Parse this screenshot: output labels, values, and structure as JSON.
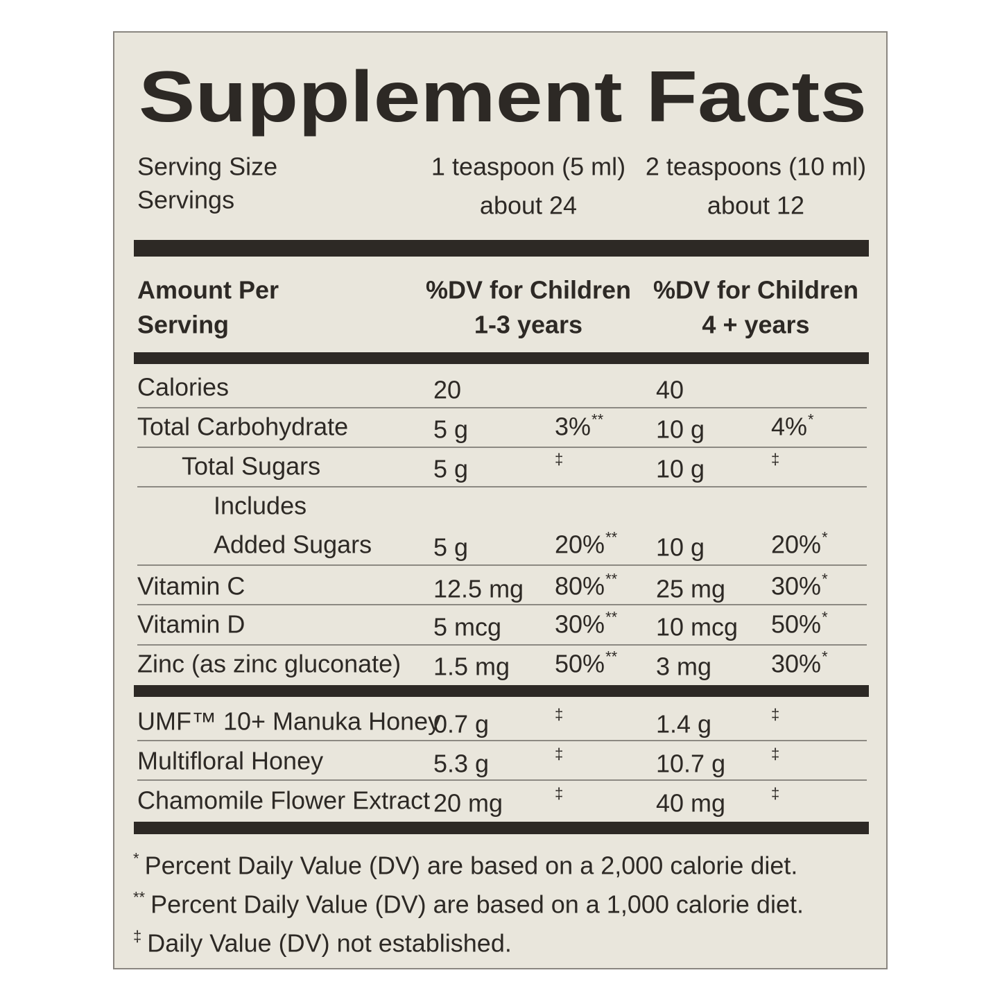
{
  "title": "Supplement Facts",
  "serving": {
    "size_label": "Serving Size",
    "servings_label": "Servings",
    "columns": [
      {
        "size": "1 teaspoon (5 ml)",
        "servings": "about 24"
      },
      {
        "size": "2 teaspoons (10 ml)",
        "servings": "about 12"
      }
    ]
  },
  "header": {
    "amount": [
      "Amount Per",
      "Serving"
    ],
    "columns": [
      [
        "%DV for Children",
        "1-3 years"
      ],
      [
        "%DV for Children",
        "4 + years"
      ]
    ]
  },
  "nutrients": [
    {
      "name": [
        "Calories"
      ],
      "cols": [
        {
          "amount": "20"
        },
        {
          "amount": "40"
        }
      ]
    },
    {
      "name": [
        "Total Carbohydrate"
      ],
      "cols": [
        {
          "amount": "5 g",
          "dv": "3%",
          "mark": "**"
        },
        {
          "amount": "10 g",
          "dv": "4%",
          "mark": "*"
        }
      ]
    },
    {
      "name": [
        "Total Sugars"
      ],
      "cols": [
        {
          "amount": "5 g",
          "mark": "‡"
        },
        {
          "amount": "10 g",
          "mark": "‡"
        }
      ]
    },
    {
      "name": [
        "Includes",
        "Added Sugars"
      ],
      "cols": [
        {
          "amount": "5 g",
          "dv": "20%",
          "mark": "**"
        },
        {
          "amount": "10 g",
          "dv": "20%",
          "mark": "*"
        }
      ]
    },
    {
      "name": [
        "Vitamin C"
      ],
      "cols": [
        {
          "amount": "12.5 mg",
          "dv": "80%",
          "mark": "**"
        },
        {
          "amount": "25 mg",
          "dv": "30%",
          "mark": "*"
        }
      ]
    },
    {
      "name": [
        "Vitamin D"
      ],
      "cols": [
        {
          "amount": "5 mcg",
          "dv": "30%",
          "mark": "**"
        },
        {
          "amount": "10 mcg",
          "dv": "50%",
          "mark": "*"
        }
      ]
    },
    {
      "name": [
        "Zinc (as zinc gluconate)"
      ],
      "cols": [
        {
          "amount": "1.5 mg",
          "dv": "50%",
          "mark": "**"
        },
        {
          "amount": "3 mg",
          "dv": "30%",
          "mark": "*"
        }
      ]
    }
  ],
  "other": [
    {
      "name": [
        "UMF™ 10+ Manuka Honey"
      ],
      "cols": [
        {
          "amount": "0.7 g",
          "mark": "‡"
        },
        {
          "amount": "1.4 g",
          "mark": "‡"
        }
      ]
    },
    {
      "name": [
        "Multifloral Honey"
      ],
      "cols": [
        {
          "amount": "5.3 g",
          "mark": "‡"
        },
        {
          "amount": "10.7 g",
          "mark": "‡"
        }
      ]
    },
    {
      "name": [
        "Chamomile Flower Extract"
      ],
      "cols": [
        {
          "amount": "20 mg",
          "mark": "‡"
        },
        {
          "amount": "40 mg",
          "mark": "‡"
        }
      ]
    }
  ],
  "footnotes": [
    {
      "symbol": "*",
      "text": "Percent Daily Value (DV) are based on a 2,000 calorie diet."
    },
    {
      "symbol": "**",
      "text": "Percent Daily Value (DV) are based on a 1,000 calorie diet."
    },
    {
      "symbol": "‡",
      "text": "Daily Value (DV) not established."
    }
  ]
}
